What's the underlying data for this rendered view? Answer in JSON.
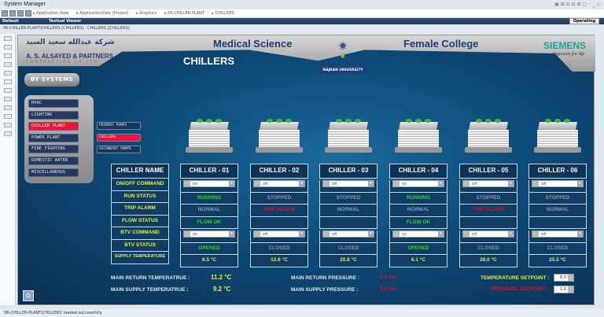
{
  "window": {
    "title": "System Manager",
    "controls": "▣ ⊞ ⊟ ⊟ ⊞ ▢  ◦ _ ▭"
  },
  "breadcrumb": [
    "Application View",
    "ApplicationView (Project)",
    "Graphics",
    "06-CHILLER-PLANT",
    "CHILLERS"
  ],
  "tabs": {
    "default": "Default",
    "textual": "Textual Viewer",
    "status": "Operating"
  },
  "path": "06-CHILLER-PLANT\\CHILLERS [CHILLERS]   .  CHILLERS [CHILLERS]",
  "header": {
    "contractor_ar": "شركة عبدالله سعيد السيد",
    "contractor_en": "A. S. ALSAYED & PARTNERS",
    "contractor_sub": "CONTRACTING CO.LTD",
    "left_title": "Medical Science",
    "right_title": "Female College",
    "university_ar": "جامعة نجران",
    "university_en": "NAJRAN UNIVERSITY",
    "brand": "SIEMENS",
    "tagline": "Ingenuity for life",
    "page_title": "CHILLERS"
  },
  "by_systems": "BY SYSTEMS",
  "systems": [
    {
      "label": "HVAC",
      "active": false
    },
    {
      "label": "LIGHTING",
      "active": false
    },
    {
      "label": "CHILLER PLANT",
      "active": true
    },
    {
      "label": "POWER PLANT",
      "active": false
    },
    {
      "label": "FIRE FIGHTING",
      "active": false
    },
    {
      "label": "DOMESTIC WATER",
      "active": false
    },
    {
      "label": "MISCELLANEOUS",
      "active": false
    }
  ],
  "subsystems": [
    {
      "label": "PRIMARY PUMPS",
      "active": false
    },
    {
      "label": "CHILLERs",
      "active": true
    },
    {
      "label": "SECONDARY PUMPS",
      "active": false
    }
  ],
  "row_labels": [
    "CHILLER NAME",
    "ON/OFF COMMAND",
    "RUN STATUS",
    "TRIP ALARM",
    "FLOW STATUS",
    "BTV COMMAND",
    "BTV STATUS",
    "SUPPLY TEMPERATURE"
  ],
  "chillers": [
    {
      "name": "CHILLER - 01",
      "onoff": "On",
      "run": "RUNNING",
      "trip": "NORMAL",
      "flow": "FLOW OK",
      "btv_cmd": "On",
      "btv": "OPENED",
      "temp": "8.5 °C"
    },
    {
      "name": "CHILLER - 02",
      "onoff": "Off",
      "run": "STOPPED",
      "trip": "TRIP ALARM",
      "flow": "",
      "btv_cmd": "Off",
      "btv": "CLOSED",
      "temp": "12.6 °C"
    },
    {
      "name": "CHILLER - 03",
      "onoff": "Off",
      "run": "STOPPED",
      "trip": "NORMAL",
      "flow": "",
      "btv_cmd": "Off",
      "btv": "CLOSED",
      "temp": "20.8 °C"
    },
    {
      "name": "CHILLER - 04",
      "onoff": "On",
      "run": "RUNNING",
      "trip": "NORMAL",
      "flow": "FLOW OK",
      "btv_cmd": "On",
      "btv": "OPENED",
      "temp": "6.1 °C"
    },
    {
      "name": "CHILLER - 05",
      "onoff": "Off",
      "run": "STOPPED",
      "trip": "TRIP ALARM",
      "flow": "",
      "btv_cmd": "Off",
      "btv": "CLOSED",
      "temp": "28.0 °C"
    },
    {
      "name": "CHILLER - 06",
      "onoff": "Off",
      "run": "STOPPED",
      "trip": "NORMAL",
      "flow": "",
      "btv_cmd": "Off",
      "btv": "CLOSED",
      "temp": "25.5 °C"
    }
  ],
  "summary": {
    "ret_temp_label": "MAIN RETURN TEMPERATRUE :",
    "ret_temp": "11.2 °C",
    "sup_temp_label": "MAIN SUPPLY TEMPERATRUE :",
    "sup_temp": "9.2 °C",
    "ret_press_label": "MAIN RETURN PRESSURE :",
    "ret_press": "2.3 bar",
    "sup_press_label": "MAIN SUPPLY PRESSURE :",
    "sup_press": "3.2 bar",
    "temp_sp_label": "TEMPERATURE SETPOINT :",
    "temp_sp": "6.0",
    "press_sp_label": "PRESSURE SETPOINT :",
    "press_sp": "1.0"
  },
  "status": "'06-CHILLER-PLANT\\CHILLERS' loaded successfully",
  "colors": {
    "active": "#e8163a",
    "running": "#29d629",
    "alarm": "#e01020",
    "label": "#e6f03a",
    "brand": "#1aa39a"
  }
}
